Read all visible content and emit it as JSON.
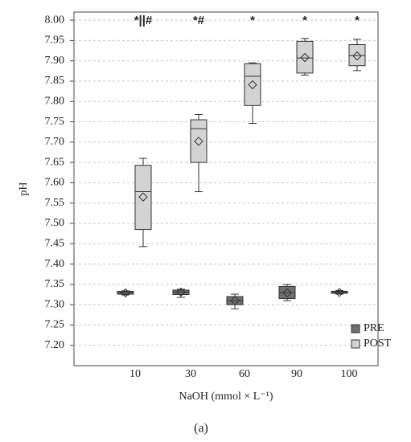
{
  "chart_data": {
    "type": "box",
    "x_label": "NaOH (mmol × L⁻¹)",
    "y_label": "pH",
    "caption": "(a)",
    "categories": [
      "10",
      "30",
      "60",
      "90",
      "100"
    ],
    "annotations": [
      "*||#",
      "*#",
      "*",
      "*",
      "*"
    ],
    "ylim": [
      7.15,
      8.02
    ],
    "yticks": [
      {
        "value": 7.2,
        "label": "7.20"
      },
      7.25,
      {
        "value": 7.3,
        "label": "7.30"
      },
      7.35,
      {
        "value": 7.4,
        "label": "7.40"
      },
      7.45,
      {
        "value": 7.5,
        "label": "7.50"
      },
      7.55,
      {
        "value": 7.6,
        "label": "7.60"
      },
      7.65,
      {
        "value": 7.7,
        "label": "7.70"
      },
      7.75,
      {
        "value": 7.8,
        "label": "7.80"
      },
      7.85,
      {
        "value": 7.9,
        "label": "7.90"
      },
      7.95,
      {
        "value": 8,
        "label": "8.00"
      }
    ],
    "grid": true,
    "legend_position": "bottom-right",
    "series": [
      {
        "name": "PRE",
        "color": "#707070",
        "min": [
          7.324,
          7.318,
          7.29,
          7.31,
          7.326
        ],
        "q1": [
          7.326,
          7.325,
          7.3,
          7.315,
          7.328
        ],
        "median": [
          7.33,
          7.331,
          7.31,
          7.33,
          7.331
        ],
        "q3": [
          7.333,
          7.336,
          7.32,
          7.345,
          7.333
        ],
        "max": [
          7.334,
          7.338,
          7.326,
          7.35,
          7.335
        ],
        "mean": [
          7.329,
          7.331,
          7.31,
          7.329,
          7.33
        ]
      },
      {
        "name": "POST",
        "color": "#d3d3d3",
        "min": [
          7.443,
          7.578,
          7.746,
          7.865,
          7.876
        ],
        "q1": [
          7.485,
          7.65,
          7.79,
          7.87,
          7.888
        ],
        "median": [
          7.578,
          7.733,
          7.862,
          7.907,
          7.913
        ],
        "q3": [
          7.643,
          7.755,
          7.893,
          7.948,
          7.94
        ],
        "max": [
          7.66,
          7.768,
          7.895,
          7.955,
          7.953
        ],
        "mean": [
          7.565,
          7.702,
          7.841,
          7.908,
          7.912
        ]
      }
    ]
  }
}
